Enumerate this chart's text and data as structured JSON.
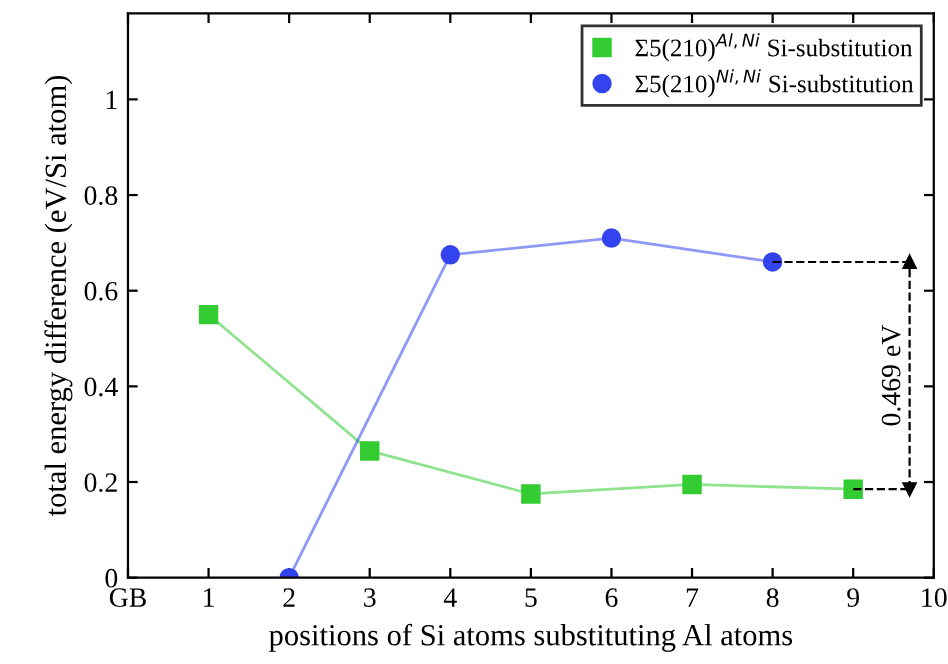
{
  "chart_data": {
    "type": "line",
    "xlabel": "positions of Si atoms substituting Al atoms",
    "ylabel": "total energy difference (eV/Si atom)",
    "xlim": [
      0,
      10
    ],
    "xticks": [
      {
        "value": 0,
        "label": "GB"
      },
      1,
      2,
      3,
      4,
      5,
      6,
      7,
      8,
      9,
      10
    ],
    "ylim": [
      0,
      1.18
    ],
    "yticks": [
      0,
      0.2,
      0.4,
      0.6,
      0.8,
      1
    ],
    "legend": "top right",
    "grid": false,
    "series": [
      {
        "name": "Σ5(210)$^{Al,Ni}$ Si-substitution",
        "color": "#33cc33",
        "marker": "square",
        "x": [
          1,
          3,
          5,
          7,
          9
        ],
        "values": [
          0.55,
          0.265,
          0.175,
          0.195,
          0.185
        ]
      },
      {
        "name": "Σ5(210)$^{Ni,Ni}$ Si-substitution",
        "color": "#3344ee",
        "marker": "circle",
        "x": [
          2,
          4,
          6,
          8
        ],
        "values": [
          0,
          0.675,
          0.71,
          0.66
        ]
      }
    ],
    "annotations": [
      "0.469 eV"
    ]
  }
}
